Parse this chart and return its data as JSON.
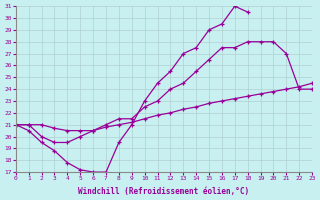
{
  "xlabel": "Windchill (Refroidissement éolien,°C)",
  "xlim": [
    0,
    23
  ],
  "ylim": [
    17,
    31
  ],
  "yticks": [
    17,
    18,
    19,
    20,
    21,
    22,
    23,
    24,
    25,
    26,
    27,
    28,
    29,
    30,
    31
  ],
  "xticks": [
    0,
    1,
    2,
    3,
    4,
    5,
    6,
    7,
    8,
    9,
    10,
    11,
    12,
    13,
    14,
    15,
    16,
    17,
    18,
    19,
    20,
    21,
    22,
    23
  ],
  "bg_color": "#c8f0f0",
  "line_color": "#990099",
  "grid_color": "#b0d0d0",
  "line1_x": [
    0,
    1,
    2,
    3,
    4,
    5,
    6,
    7,
    8,
    9,
    10,
    11,
    12,
    13,
    14,
    15,
    16,
    17,
    18
  ],
  "line1_y": [
    21.0,
    20.5,
    19.5,
    18.8,
    17.8,
    17.2,
    17.0,
    17.0,
    19.5,
    21.0,
    23.0,
    24.5,
    25.5,
    27.0,
    27.5,
    29.0,
    29.5,
    31.0,
    30.5
  ],
  "line2_x": [
    0,
    1,
    2,
    3,
    4,
    5,
    6,
    7,
    8,
    9,
    10,
    11,
    12,
    13,
    14,
    15,
    16,
    17,
    18,
    19,
    20,
    21,
    22,
    23
  ],
  "line2_y": [
    21.0,
    21.0,
    20.0,
    19.5,
    19.5,
    20.0,
    20.5,
    21.0,
    21.5,
    21.5,
    22.5,
    23.0,
    24.0,
    24.5,
    25.5,
    26.5,
    27.5,
    27.5,
    28.0,
    28.0,
    28.0,
    27.0,
    24.0,
    24.0
  ],
  "line3_x": [
    0,
    1,
    2,
    3,
    4,
    5,
    6,
    7,
    8,
    9,
    10,
    11,
    12,
    13,
    14,
    15,
    16,
    17,
    18,
    19,
    20,
    21,
    22,
    23
  ],
  "line3_y": [
    21.0,
    21.0,
    21.0,
    20.7,
    20.5,
    20.5,
    20.5,
    20.8,
    21.0,
    21.2,
    21.5,
    21.8,
    22.0,
    22.3,
    22.5,
    22.8,
    23.0,
    23.2,
    23.4,
    23.6,
    23.8,
    24.0,
    24.2,
    24.5
  ]
}
